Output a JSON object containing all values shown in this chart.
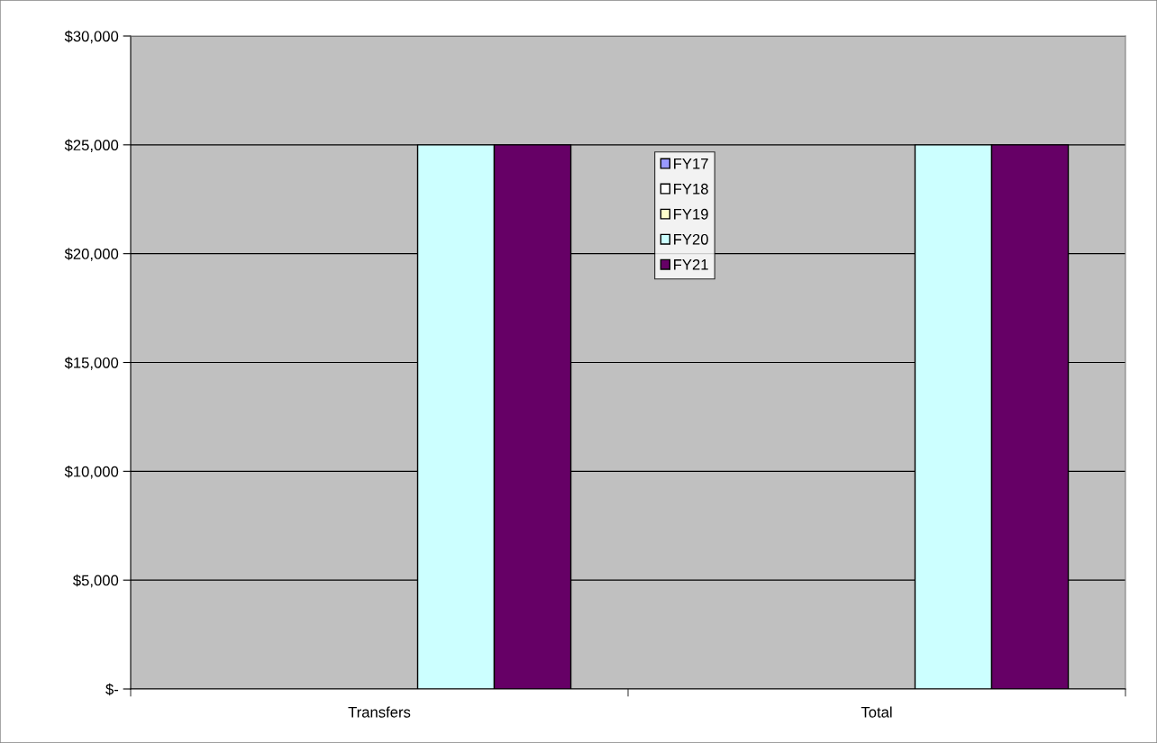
{
  "chart_data": {
    "type": "bar",
    "categories": [
      "Transfers",
      "Total"
    ],
    "series": [
      {
        "name": "FY17",
        "color": "#9999ff",
        "values": [
          0,
          0
        ]
      },
      {
        "name": "FY18",
        "color": "#ffffff",
        "values": [
          0,
          0
        ]
      },
      {
        "name": "FY19",
        "color": "#ffffcc",
        "values": [
          0,
          0
        ]
      },
      {
        "name": "FY20",
        "color": "#ccffff",
        "values": [
          25000,
          25000
        ]
      },
      {
        "name": "FY21",
        "color": "#660066",
        "values": [
          25000,
          25000
        ]
      }
    ],
    "ylim": [
      0,
      30000
    ],
    "yticks": [
      {
        "value": 0,
        "label": "$-"
      },
      {
        "value": 5000,
        "label": "$5,000"
      },
      {
        "value": 10000,
        "label": "$10,000"
      },
      {
        "value": 15000,
        "label": "$15,000"
      },
      {
        "value": 20000,
        "label": "$20,000"
      },
      {
        "value": 25000,
        "label": "$25,000"
      },
      {
        "value": 30000,
        "label": "$30,000"
      }
    ],
    "grid": "y",
    "legend": "top"
  }
}
